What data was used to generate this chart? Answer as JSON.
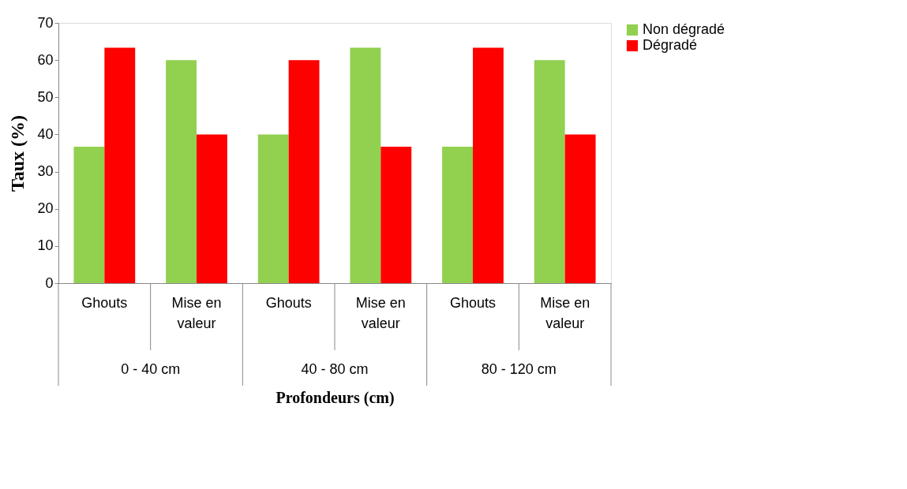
{
  "chart_data": {
    "type": "bar",
    "categories": [
      "Ghouts",
      "Mise en valeur",
      "Ghouts",
      "Mise en valeur",
      "Ghouts",
      "Mise en valeur"
    ],
    "series": [
      {
        "name": "Non dégradé",
        "color": "#92d050",
        "values": [
          36.7,
          60,
          40,
          63.3,
          36.7,
          60
        ]
      },
      {
        "name": "Dégradé",
        "color": "#ff0000",
        "values": [
          63.3,
          40,
          60,
          36.7,
          63.3,
          40
        ]
      }
    ],
    "annotations": [
      "0 - 40 cm",
      "40 - 80 cm",
      "80 - 120 cm"
    ],
    "xlabel": "Profondeurs (cm)",
    "ylabel": "Taux (%)",
    "ylim": [
      0,
      70
    ],
    "yticks": [
      0,
      10,
      20,
      30,
      40,
      50,
      60,
      70
    ],
    "grid": false,
    "legend": "right"
  }
}
